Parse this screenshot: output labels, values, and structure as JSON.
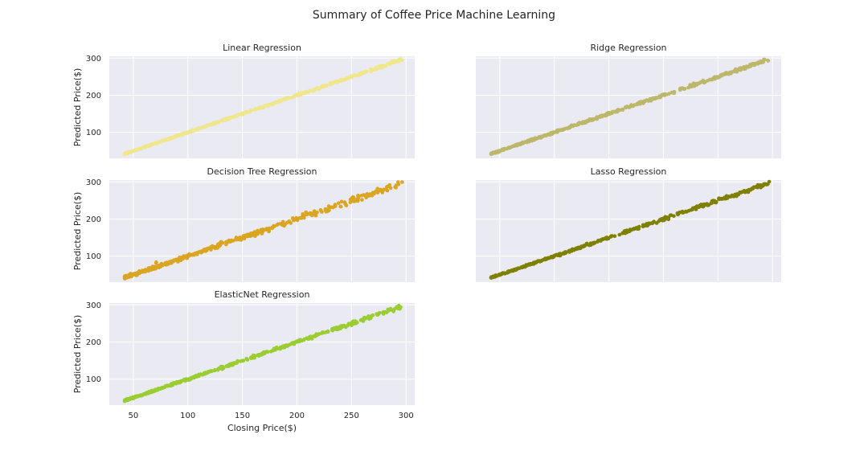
{
  "figure": {
    "title": "Summary of Coffee Price Machine Learning"
  },
  "chart_data": [
    {
      "type": "scatter",
      "title": "Linear Regression",
      "xlabel": "",
      "ylabel": "Predicted Price($)",
      "color": "#f0e68c",
      "xlim": [
        28,
        308
      ],
      "ylim": [
        30,
        305
      ],
      "xticks": [],
      "yticks": [
        100,
        200,
        300
      ],
      "noise": 1.2,
      "x_range": [
        42,
        297
      ],
      "grid": true
    },
    {
      "type": "scatter",
      "title": "Ridge Regression",
      "xlabel": "",
      "ylabel": "",
      "color": "#bdb76b",
      "xlim": [
        28,
        308
      ],
      "ylim": [
        30,
        305
      ],
      "xticks": [],
      "yticks": [],
      "noise": 1.6,
      "x_range": [
        42,
        297
      ],
      "grid": true
    },
    {
      "type": "scatter",
      "title": "Decision Tree Regression",
      "xlabel": "",
      "ylabel": "Predicted Price($)",
      "color": "#daa520",
      "xlim": [
        28,
        308
      ],
      "ylim": [
        30,
        305
      ],
      "xticks": [],
      "yticks": [
        100,
        200,
        300
      ],
      "noise": 3.2,
      "x_range": [
        42,
        297
      ],
      "grid": true
    },
    {
      "type": "scatter",
      "title": "Lasso Regression",
      "xlabel": "",
      "ylabel": "",
      "color": "#808000",
      "xlim": [
        28,
        308
      ],
      "ylim": [
        30,
        305
      ],
      "xticks": [],
      "yticks": [],
      "noise": 1.8,
      "x_range": [
        42,
        297
      ],
      "grid": true
    },
    {
      "type": "scatter",
      "title": "ElasticNet Regression",
      "xlabel": "Closing Price($)",
      "ylabel": "Predicted Price($)",
      "color": "#9acd32",
      "xlim": [
        28,
        308
      ],
      "ylim": [
        30,
        305
      ],
      "xticks": [
        50,
        100,
        150,
        200,
        250,
        300
      ],
      "yticks": [
        100,
        200,
        300
      ],
      "noise": 1.9,
      "x_range": [
        42,
        297
      ],
      "grid": true
    }
  ]
}
